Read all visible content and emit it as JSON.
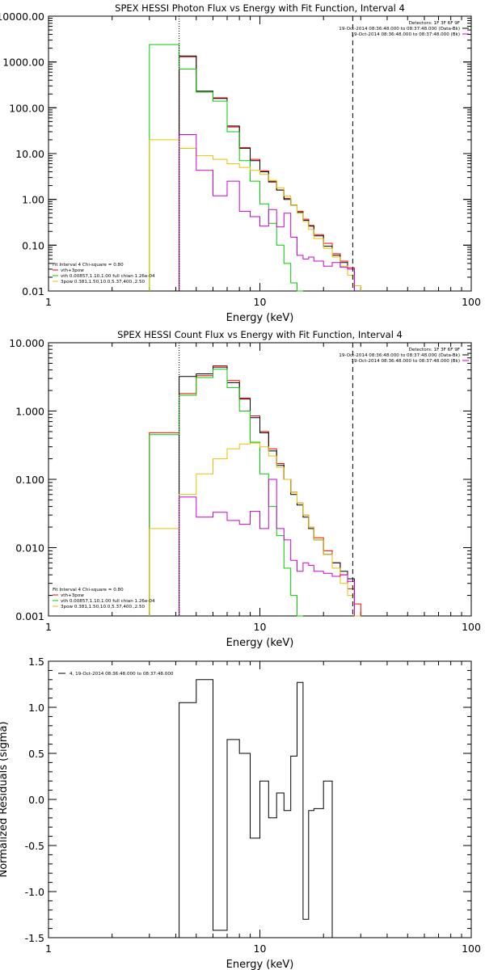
{
  "chart_data": [
    {
      "type": "line",
      "title": "SPEX HESSI Photon Flux vs Energy with Fit Function, Interval 4",
      "xlabel": "Energy (keV)",
      "ylabel": "",
      "xscale": "log",
      "yscale": "log",
      "xlim": [
        1,
        100
      ],
      "ylim": [
        0.01,
        10000
      ],
      "xticks": [
        {
          "v": 1,
          "label": "1"
        },
        {
          "v": 10,
          "label": "10"
        },
        {
          "v": 100,
          "label": "100"
        }
      ],
      "yticks": [
        {
          "v": 10000,
          "label": "10000.00"
        },
        {
          "v": 1000,
          "label": "1000.00"
        },
        {
          "v": 100,
          "label": "100.00"
        },
        {
          "v": 10,
          "label": "10.00"
        },
        {
          "v": 1,
          "label": "1.00"
        },
        {
          "v": 0.1,
          "label": "0.10"
        },
        {
          "v": 0.01,
          "label": "0.01"
        }
      ],
      "vlines": [
        {
          "x": 4.15,
          "style": "dotted"
        },
        {
          "x": 27.5,
          "style": "dashed"
        }
      ],
      "info_top_right": [
        {
          "text": "Detectors: 1F 3F 6F 9F"
        },
        {
          "text": "19-Oct-2014 08:36:48.000 to 08:37:48.000 (Data-Bk)",
          "color": "#000000"
        },
        {
          "text": "19-Oct-2014 08:36:48.000 to 08:37:48.000 (Bk)",
          "color": "#cc00cc"
        }
      ],
      "legend_bottom_left": [
        {
          "text": "Fit Interval 4   Chi-square = 0.80",
          "color": ""
        },
        {
          "text": "vth+3pow",
          "color": "#ff0000"
        },
        {
          "text": "vth 0.00857,1.10,1.00  full chian 1.26e-04",
          "color": "#00cc00"
        },
        {
          "text": "3pow 0.381,1.50,10.0,5.37,400.,2.50",
          "color": "#e6c200"
        }
      ],
      "x_edges": [
        3.0,
        4.15,
        5.0,
        6.0,
        7.0,
        8.0,
        9.0,
        10.0,
        11.0,
        12.0,
        13.0,
        14.0,
        15.0,
        16.0,
        17.0,
        18.0,
        20.0,
        22.0,
        24.0,
        26.0,
        28.0,
        30.0
      ],
      "series": [
        {
          "name": "",
          "color": "#ff0000",
          "values": [
            null,
            1300,
            220,
            165,
            38,
            13.5,
            7.5,
            4.2,
            2.5,
            1.6,
            1.05,
            0.75,
            0.55,
            0.37,
            0.27,
            0.17,
            0.11,
            0.065,
            0.045,
            0.032,
            null
          ]
        },
        {
          "name": "",
          "color": "#000000",
          "values": [
            null,
            1350,
            230,
            160,
            40,
            13,
            7.0,
            4.0,
            2.4,
            1.6,
            1.0,
            0.75,
            0.52,
            0.35,
            0.26,
            0.16,
            0.095,
            0.06,
            0.042,
            0.03,
            null
          ]
        },
        {
          "name": "",
          "color": "#00cc00",
          "values": [
            2400,
            700,
            220,
            140,
            30,
            7,
            2.5,
            0.8,
            0.3,
            0.1,
            0.04,
            0.015,
            0.007,
            null,
            null,
            null,
            null,
            null,
            null,
            null,
            null
          ]
        },
        {
          "name": "",
          "color": "#e6c200",
          "values": [
            20,
            13,
            9,
            7.5,
            6.0,
            5.0,
            4.3,
            3.5,
            2.6,
            1.8,
            1.2,
            0.75,
            0.5,
            0.33,
            0.22,
            0.14,
            0.085,
            0.055,
            0.035,
            0.022,
            0.013
          ]
        },
        {
          "name": "",
          "color": "#cc00cc",
          "values": [
            null,
            26,
            4.3,
            1.2,
            2.5,
            0.55,
            0.42,
            0.26,
            0.6,
            0.25,
            0.5,
            0.15,
            0.06,
            0.05,
            0.055,
            0.045,
            0.035,
            0.042,
            0.033,
            0.03,
            null
          ]
        }
      ]
    },
    {
      "type": "line",
      "title": "SPEX HESSI Count Flux vs Energy with Fit Function, Interval 4",
      "xlabel": "Energy (keV)",
      "ylabel": "",
      "xscale": "log",
      "yscale": "log",
      "xlim": [
        1,
        100
      ],
      "ylim": [
        0.001,
        10
      ],
      "xticks": [
        {
          "v": 1,
          "label": "1"
        },
        {
          "v": 10,
          "label": "10"
        },
        {
          "v": 100,
          "label": "100"
        }
      ],
      "yticks": [
        {
          "v": 10,
          "label": "10.000"
        },
        {
          "v": 1,
          "label": "1.000"
        },
        {
          "v": 0.1,
          "label": "0.100"
        },
        {
          "v": 0.01,
          "label": "0.010"
        },
        {
          "v": 0.001,
          "label": "0.001"
        }
      ],
      "vlines": [
        {
          "x": 4.15,
          "style": "dotted"
        },
        {
          "x": 27.5,
          "style": "dashed"
        }
      ],
      "info_top_right": [
        {
          "text": "Detectors: 1F 3F 6F 9F"
        },
        {
          "text": "19-Oct-2014 08:36:48.000 to 08:37:48.000 (Data-Bk)",
          "color": "#000000"
        },
        {
          "text": "19-Oct-2014 08:36:48.000 to 08:37:48.000 (Bk)",
          "color": "#cc00cc"
        }
      ],
      "legend_bottom_left": [
        {
          "text": "Fit Interval 4   Chi-square = 0.80",
          "color": ""
        },
        {
          "text": "vth+3pow",
          "color": "#ff0000"
        },
        {
          "text": "vth 0.00857,1.10,1.00  full chian 1.26e-04",
          "color": "#00cc00"
        },
        {
          "text": "3pow 0.381,1.50,10.0,5.37,400.,2.50",
          "color": "#e6c200"
        }
      ],
      "x_edges": [
        3.0,
        4.15,
        5.0,
        6.0,
        7.0,
        8.0,
        9.0,
        10.0,
        11.0,
        12.0,
        13.0,
        14.0,
        15.0,
        16.0,
        17.0,
        18.0,
        20.0,
        22.0,
        24.0,
        26.0,
        28.0,
        30.0
      ],
      "series": [
        {
          "name": "",
          "color": "#ff0000",
          "values": [
            0.48,
            1.8,
            3.3,
            4.6,
            2.8,
            1.55,
            0.85,
            0.5,
            0.28,
            0.17,
            0.1,
            0.065,
            0.045,
            0.03,
            0.02,
            0.014,
            0.009,
            0.006,
            0.004,
            0.0025,
            0.0015
          ]
        },
        {
          "name": "",
          "color": "#000000",
          "values": [
            null,
            3.2,
            3.5,
            4.4,
            2.6,
            1.5,
            0.8,
            0.48,
            0.26,
            0.16,
            0.1,
            0.06,
            0.042,
            0.028,
            0.019,
            0.013,
            0.008,
            0.006,
            0.0045,
            0.0035,
            null
          ]
        },
        {
          "name": "",
          "color": "#00cc00",
          "values": [
            0.45,
            1.7,
            3.1,
            4.1,
            2.2,
            1.0,
            0.35,
            0.12,
            0.04,
            0.015,
            0.005,
            0.002,
            0.001,
            null,
            null,
            null,
            null,
            null,
            null,
            null,
            null
          ]
        },
        {
          "name": "",
          "color": "#e6c200",
          "values": [
            0.019,
            0.06,
            0.12,
            0.2,
            0.28,
            0.33,
            0.34,
            0.3,
            0.22,
            0.15,
            0.1,
            0.065,
            0.045,
            0.03,
            0.02,
            0.013,
            0.008,
            0.005,
            0.003,
            0.002,
            0.001
          ]
        },
        {
          "name": "",
          "color": "#cc00cc",
          "values": [
            null,
            0.055,
            0.028,
            0.033,
            0.025,
            0.022,
            0.034,
            0.019,
            0.1,
            0.019,
            0.013,
            0.0065,
            0.0045,
            0.006,
            0.0055,
            0.0045,
            0.0042,
            0.0038,
            0.004,
            0.0032,
            null
          ]
        }
      ]
    },
    {
      "type": "line",
      "title": "",
      "xlabel": "Energy (keV)",
      "ylabel": "Normalized Residuals (sigma)",
      "xscale": "log",
      "yscale": "linear",
      "xlim": [
        1,
        100
      ],
      "ylim": [
        -1.5,
        1.5
      ],
      "xticks": [
        {
          "v": 1,
          "label": "1"
        },
        {
          "v": 10,
          "label": "10"
        },
        {
          "v": 100,
          "label": "100"
        }
      ],
      "yticks": [
        {
          "v": 1.5,
          "label": "1.5"
        },
        {
          "v": 1.0,
          "label": "1.0"
        },
        {
          "v": 0.5,
          "label": "0.5"
        },
        {
          "v": 0.0,
          "label": "0.0"
        },
        {
          "v": -0.5,
          "label": "-0.5"
        },
        {
          "v": -1.0,
          "label": "-1.0"
        },
        {
          "v": -1.5,
          "label": "-1.5"
        }
      ],
      "legend_top_left": [
        {
          "text": "4, 19-Oct-2014 08:36:48.000 to 08:37:48.000",
          "color": "#000000"
        }
      ],
      "x_edges": [
        4.15,
        5.0,
        6.0,
        7.0,
        8.0,
        9.0,
        10.0,
        11.0,
        12.0,
        13.0,
        14.0,
        15.0,
        16.0,
        17.0,
        18.0,
        20.0,
        22.0,
        24.0,
        26.0,
        28.0
      ],
      "series": [
        {
          "name": "",
          "color": "#000000",
          "values": [
            1.05,
            1.3,
            -1.42,
            0.65,
            0.5,
            -0.42,
            0.2,
            -0.2,
            0.07,
            -0.12,
            0.47,
            1.27,
            -1.3,
            -0.12,
            -0.1,
            0.2,
            null,
            null,
            null
          ]
        }
      ]
    }
  ]
}
